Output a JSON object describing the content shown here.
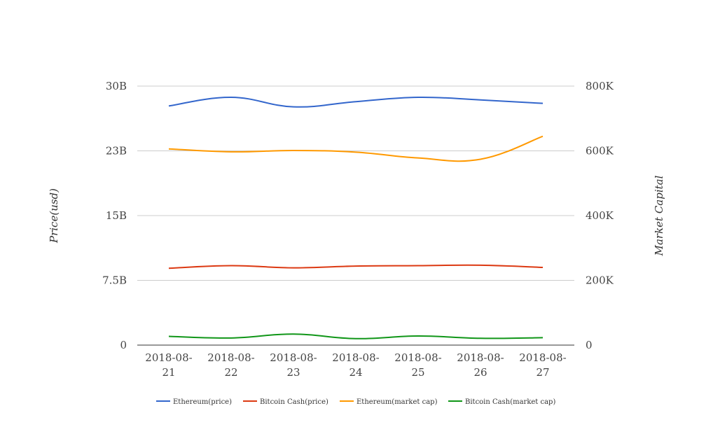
{
  "chart_data": {
    "type": "line",
    "categories": [
      "2018-08-21",
      "2018-08-22",
      "2018-08-23",
      "2018-08-24",
      "2018-08-25",
      "2018-08-26",
      "2018-08-27"
    ],
    "category_lines": [
      [
        "2018-08-",
        "21"
      ],
      [
        "2018-08-",
        "22"
      ],
      [
        "2018-08-",
        "23"
      ],
      [
        "2018-08-",
        "24"
      ],
      [
        "2018-08-",
        "25"
      ],
      [
        "2018-08-",
        "26"
      ],
      [
        "2018-08-",
        "27"
      ]
    ],
    "y_left": {
      "label": "Price(usd)",
      "range": [
        0,
        30000000000
      ],
      "ticks": [
        0,
        7500000000,
        15000000000,
        22500000000,
        30000000000
      ],
      "tick_labels": [
        "0",
        "7.5B",
        "15B",
        "23B",
        "30B"
      ]
    },
    "y_right": {
      "label": "Market Capital",
      "range": [
        0,
        800000
      ],
      "ticks": [
        0,
        200000,
        400000,
        600000,
        800000
      ],
      "tick_labels": [
        "0",
        "200K",
        "400K",
        "600K",
        "800K"
      ]
    },
    "series": [
      {
        "name": "Ethereum(price)",
        "color": "#3366cc",
        "axis": "left",
        "values": [
          27700000000,
          28700000000,
          27600000000,
          28200000000,
          28700000000,
          28400000000,
          28000000000
        ]
      },
      {
        "name": "Bitcoin Cash(price)",
        "color": "#dc3912",
        "axis": "left",
        "values": [
          8900000000,
          9200000000,
          8950000000,
          9150000000,
          9200000000,
          9250000000,
          9000000000
        ]
      },
      {
        "name": "Ethereum(market cap)",
        "color": "#ff9900",
        "axis": "right",
        "values": [
          606000,
          597000,
          601000,
          596000,
          578000,
          574000,
          645000
        ]
      },
      {
        "name": "Bitcoin Cash(market cap)",
        "color": "#109618",
        "axis": "right",
        "values": [
          27000,
          22000,
          34000,
          20000,
          28000,
          21000,
          23000
        ]
      }
    ],
    "grid": true,
    "legend_position": "bottom"
  }
}
